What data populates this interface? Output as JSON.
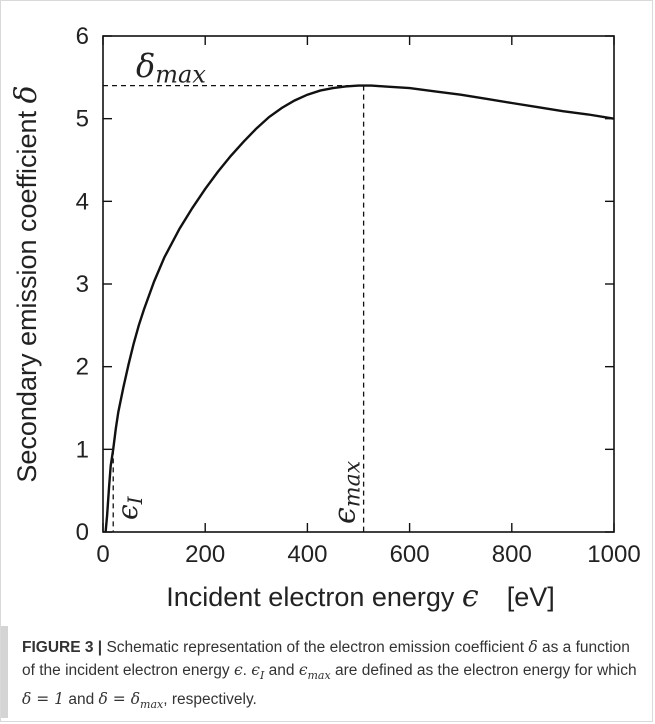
{
  "chart_data": {
    "type": "line",
    "title": "",
    "xlabel": "Incident electron energy",
    "xlabel_symbol": "ϵ",
    "xlabel_unit": "[eV]",
    "ylabel": "Secondary emission coefficient",
    "ylabel_symbol": "δ",
    "xlim": [
      0,
      1000
    ],
    "ylim": [
      0,
      6
    ],
    "xticks": [
      0,
      200,
      400,
      600,
      800,
      1000
    ],
    "yticks": [
      0,
      1,
      2,
      3,
      4,
      5,
      6
    ],
    "grid": false,
    "series": [
      {
        "x": [
          5,
          8,
          12,
          15,
          20,
          25,
          30,
          40,
          50,
          60,
          70,
          80,
          100,
          120,
          150,
          175,
          200,
          225,
          250,
          275,
          300,
          325,
          350,
          375,
          400,
          425,
          450,
          475,
          500,
          510,
          525,
          550,
          600,
          650,
          700,
          750,
          800,
          850,
          900,
          950,
          1000
        ],
        "y": [
          0.0,
          0.2,
          0.55,
          0.8,
          1.0,
          1.25,
          1.45,
          1.75,
          2.03,
          2.28,
          2.5,
          2.69,
          3.03,
          3.32,
          3.67,
          3.92,
          4.15,
          4.36,
          4.55,
          4.72,
          4.88,
          5.02,
          5.13,
          5.22,
          5.29,
          5.34,
          5.37,
          5.39,
          5.4,
          5.4,
          5.4,
          5.39,
          5.37,
          5.33,
          5.29,
          5.24,
          5.19,
          5.14,
          5.09,
          5.05,
          5.0
        ]
      }
    ],
    "annotations": [
      {
        "label": "δ",
        "subscript": "max",
        "x": 0,
        "y": 5.4,
        "kind": "horizontal-dashed-to-peak"
      },
      {
        "label": "ϵ",
        "subscript": "max",
        "x": 510,
        "y": 5.4,
        "kind": "vertical-dashed-from-peak"
      },
      {
        "label": "ϵ",
        "subscript": "I",
        "x": 20,
        "y": 1.0,
        "kind": "vertical-dashed-from-point"
      }
    ]
  },
  "caption": {
    "figure_label": "FIGURE 3 |",
    "text_1": " Schematic representation of the electron emission coefficient ",
    "delta": "δ",
    "text_2": " as a function of the incident electron energy ",
    "eps": "ϵ",
    "text_3": ". ",
    "eps_i": "ϵ",
    "sub_i": "I",
    "text_4": " and ",
    "eps_max": "ϵ",
    "sub_max": "max",
    "text_5": " are defined as the electron energy for which ",
    "cond_1": "δ = 1",
    "text_6": " and ",
    "cond_2_lhs": "δ = δ",
    "cond_2_sub": "max",
    "text_7": ", respectively."
  }
}
